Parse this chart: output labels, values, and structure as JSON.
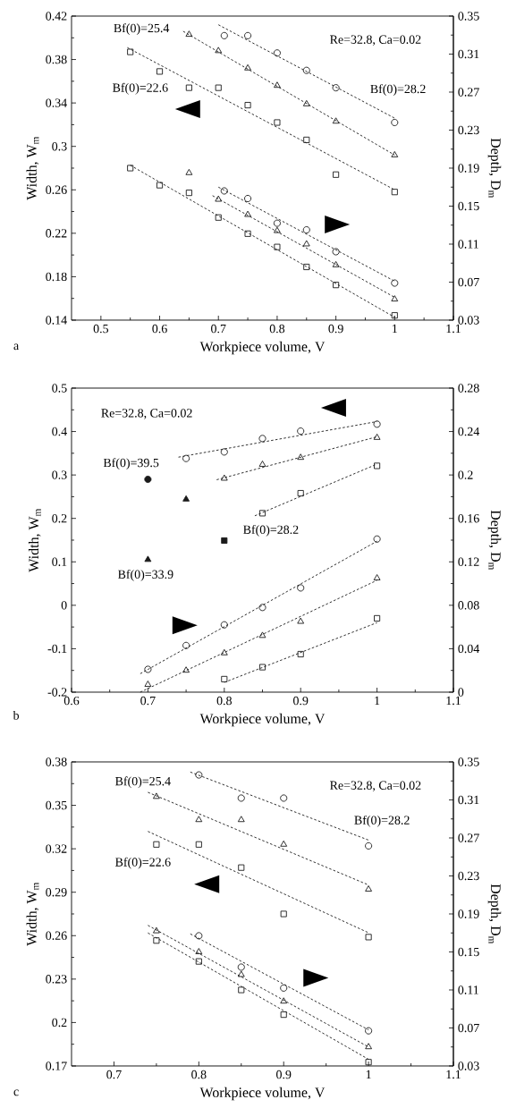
{
  "chart_data": [
    {
      "type": "scatter",
      "xlabel": "Workpiece volume, V",
      "ylabel": "Width, W$_{m}$",
      "y2label": "Depth, D$_{m}$",
      "xlim": [
        0.45,
        1.1
      ],
      "xticks": [
        0.5,
        0.6,
        0.7,
        0.8,
        0.9,
        1,
        1.1
      ],
      "ylim": [
        0.14,
        0.42
      ],
      "yticks": [
        0.14,
        0.18,
        0.22,
        0.26,
        0.3,
        0.34,
        0.38,
        0.42
      ],
      "y2lim": [
        0.03,
        0.35
      ],
      "y2ticks": [
        0.03,
        0.07,
        0.11,
        0.15,
        0.19,
        0.23,
        0.27,
        0.31,
        0.35
      ],
      "annotations": [
        "Re=32.8, Ca=0.02",
        "a",
        "Bf(0)=25.4",
        "Bf(0)=22.6",
        "Bf(0)=28.2"
      ],
      "series": [
        {
          "type": "scatter",
          "marker": "square",
          "color": "#1a1a1a",
          "x": [
            0.55,
            0.6,
            0.65,
            0.7,
            0.75,
            0.8,
            0.85,
            0.9,
            1
          ],
          "values": [
            0.387,
            0.369,
            0.354,
            0.354,
            0.338,
            0.322,
            0.306,
            0.274,
            0.258
          ]
        },
        {
          "type": "scatter",
          "marker": "triangle",
          "color": "#1a1a1a",
          "x": [
            0.65,
            0.7,
            0.75,
            0.8,
            0.85,
            0.9,
            1
          ],
          "values": [
            0.403,
            0.388,
            0.372,
            0.356,
            0.339,
            0.323,
            0.292
          ]
        },
        {
          "type": "scatter",
          "marker": "circle",
          "color": "#1a1a1a",
          "x": [
            0.71,
            0.75,
            0.8,
            0.85,
            0.9,
            1
          ],
          "values": [
            0.402,
            0.402,
            0.386,
            0.37,
            0.354,
            0.322
          ]
        },
        {
          "type": "line",
          "line_style": "dashed",
          "color": "#1a1a1a",
          "x": [
            0.545,
            1
          ],
          "values": [
            0.391,
            0.26
          ]
        },
        {
          "type": "line",
          "line_style": "dashed",
          "color": "#1a1a1a",
          "x": [
            0.64,
            1
          ],
          "values": [
            0.406,
            0.292
          ]
        },
        {
          "type": "line",
          "line_style": "dashed",
          "color": "#1a1a1a",
          "x": [
            0.7,
            1
          ],
          "values": [
            0.412,
            0.326
          ]
        },
        {
          "type": "scatter",
          "axis": "y2",
          "marker": "square",
          "color": "#1a1a1a",
          "x": [
            0.55,
            0.6,
            0.65,
            0.7,
            0.75,
            0.8,
            0.85,
            0.9,
            1
          ],
          "values": [
            0.19,
            0.172,
            0.164,
            0.138,
            0.121,
            0.107,
            0.086,
            0.067,
            0.035
          ]
        },
        {
          "type": "scatter",
          "axis": "y2",
          "marker": "triangle",
          "color": "#1a1a1a",
          "x": [
            0.65,
            0.7,
            0.75,
            0.8,
            0.85,
            0.9,
            1
          ],
          "values": [
            0.185,
            0.157,
            0.141,
            0.124,
            0.11,
            0.088,
            0.052
          ]
        },
        {
          "type": "scatter",
          "axis": "y2",
          "marker": "circle",
          "color": "#1a1a1a",
          "x": [
            0.71,
            0.75,
            0.8,
            0.85,
            0.9,
            1
          ],
          "values": [
            0.166,
            0.158,
            0.132,
            0.125,
            0.102,
            0.069
          ]
        },
        {
          "type": "line",
          "axis": "y2",
          "line_style": "dashed",
          "color": "#1a1a1a",
          "x": [
            0.55,
            1
          ],
          "values": [
            0.193,
            0.033
          ]
        },
        {
          "type": "line",
          "axis": "y2",
          "line_style": "dashed",
          "color": "#1a1a1a",
          "x": [
            0.69,
            1
          ],
          "values": [
            0.161,
            0.054
          ]
        },
        {
          "type": "line",
          "axis": "y2",
          "line_style": "dashed",
          "color": "#1a1a1a",
          "x": [
            0.7,
            1
          ],
          "values": [
            0.17,
            0.071
          ]
        }
      ]
    },
    {
      "type": "scatter",
      "xlabel": "Workpiece volume, V",
      "ylabel": "Width, W$_{m}$",
      "y2label": "Depth, D$_{m}$",
      "xlim": [
        0.6,
        1.1
      ],
      "xticks": [
        0.6,
        0.7,
        0.8,
        0.9,
        1,
        1.1
      ],
      "ylim": [
        -0.2,
        0.5
      ],
      "yticks": [
        -0.2,
        -0.1,
        0,
        0.1,
        0.2,
        0.3,
        0.4,
        0.5
      ],
      "y2lim": [
        0,
        0.28
      ],
      "y2ticks": [
        0,
        0.04,
        0.08,
        0.12,
        0.16,
        0.2,
        0.24,
        0.28
      ],
      "annotations": [
        "Re=32.8, Ca=0.02",
        "b",
        "Bf(0)=39.5",
        "Bf(0)=28.2",
        "Bf(0)=33.9"
      ],
      "series": [
        {
          "type": "scatter",
          "marker": "circle",
          "color": "#1a1a1a",
          "x": [
            0.75,
            0.8,
            0.85,
            0.9,
            1
          ],
          "values": [
            0.338,
            0.353,
            0.384,
            0.401,
            0.417
          ]
        },
        {
          "type": "scatter",
          "marker": "triangle",
          "color": "#1a1a1a",
          "x": [
            0.8,
            0.85,
            0.9,
            1
          ],
          "values": [
            0.292,
            0.324,
            0.34,
            0.386
          ]
        },
        {
          "type": "scatter",
          "marker": "square",
          "color": "#1a1a1a",
          "x": [
            0.85,
            0.9,
            1
          ],
          "values": [
            0.212,
            0.258,
            0.321
          ]
        },
        {
          "type": "line",
          "line_style": "dashed",
          "color": "#1a1a1a",
          "x": [
            0.74,
            1
          ],
          "values": [
            0.341,
            0.423
          ]
        },
        {
          "type": "line",
          "line_style": "dashed",
          "color": "#1a1a1a",
          "x": [
            0.79,
            1
          ],
          "values": [
            0.289,
            0.388
          ]
        },
        {
          "type": "line",
          "line_style": "dashed",
          "color": "#1a1a1a",
          "x": [
            0.84,
            1
          ],
          "values": [
            0.206,
            0.325
          ]
        },
        {
          "type": "scatter",
          "marker": "circle",
          "color": "#1a1a1a",
          "x": [
            0.7
          ],
          "values": [
            0.29
          ]
        },
        {
          "type": "scatter",
          "marker": "triangle",
          "color": "#1a1a1a",
          "x": [
            0.75
          ],
          "values": [
            0.244
          ]
        },
        {
          "type": "scatter",
          "marker": "square",
          "color": "#1a1a1a",
          "x": [
            0.8
          ],
          "values": [
            0.149
          ]
        },
        {
          "type": "scatter",
          "marker": "triangle",
          "color": "#1a1a1a",
          "x": [
            0.7
          ],
          "values": [
            0.105
          ]
        },
        {
          "type": "scatter",
          "axis": "y2",
          "marker": "circle",
          "color": "#1a1a1a",
          "x": [
            0.7,
            0.75,
            0.8,
            0.85,
            0.9,
            1
          ],
          "values": [
            0.021,
            0.043,
            0.062,
            0.078,
            0.096,
            0.141
          ]
        },
        {
          "type": "scatter",
          "axis": "y2",
          "marker": "triangle",
          "color": "#1a1a1a",
          "x": [
            0.7,
            0.75,
            0.8,
            0.85,
            0.9,
            1
          ],
          "values": [
            0.007,
            0.02,
            0.036,
            0.052,
            0.065,
            0.105
          ]
        },
        {
          "type": "scatter",
          "axis": "y2",
          "marker": "square",
          "color": "#1a1a1a",
          "x": [
            0.8,
            0.85,
            0.9,
            1
          ],
          "values": [
            0.012,
            0.023,
            0.035,
            0.068
          ]
        },
        {
          "type": "line",
          "axis": "y2",
          "line_style": "dashed",
          "color": "#1a1a1a",
          "x": [
            0.69,
            1
          ],
          "values": [
            0.017,
            0.139
          ]
        },
        {
          "type": "line",
          "axis": "y2",
          "line_style": "dashed",
          "color": "#1a1a1a",
          "x": [
            0.69,
            1
          ],
          "values": [
            0,
            0.103
          ]
        },
        {
          "type": "line",
          "axis": "y2",
          "line_style": "dashed",
          "color": "#1a1a1a",
          "x": [
            0.8,
            1
          ],
          "values": [
            0.009,
            0.064
          ]
        }
      ]
    },
    {
      "type": "scatter",
      "xlabel": "Workpiece volume, V",
      "ylabel": "Width, W$_{m}$",
      "y2label": "Depth, D$_{m}$",
      "xlim": [
        0.65,
        1.1
      ],
      "xticks": [
        0.7,
        0.8,
        0.9,
        1,
        1.1
      ],
      "ylim": [
        0.17,
        0.38
      ],
      "yticks": [
        0.17,
        0.2,
        0.23,
        0.26,
        0.29,
        0.32,
        0.35,
        0.38
      ],
      "y2lim": [
        0.03,
        0.35
      ],
      "y2ticks": [
        0.03,
        0.07,
        0.11,
        0.15,
        0.19,
        0.23,
        0.27,
        0.31,
        0.35
      ],
      "annotations": [
        "Re=32.8, Ca=0.02",
        "c",
        "Bf(0)=25.4",
        "Bf(0)=22.6",
        "Bf(0)=28.2"
      ],
      "series": [
        {
          "type": "scatter",
          "marker": "circle",
          "color": "#1a1a1a",
          "x": [
            0.8,
            0.85,
            0.9,
            1
          ],
          "values": [
            0.371,
            0.355,
            0.355,
            0.322
          ]
        },
        {
          "type": "scatter",
          "marker": "triangle",
          "color": "#1a1a1a",
          "x": [
            0.75,
            0.8,
            0.85,
            0.9,
            1
          ],
          "values": [
            0.356,
            0.34,
            0.34,
            0.323,
            0.292
          ]
        },
        {
          "type": "scatter",
          "marker": "square",
          "color": "#1a1a1a",
          "x": [
            0.75,
            0.8,
            0.85,
            0.9,
            1
          ],
          "values": [
            0.323,
            0.323,
            0.307,
            0.275,
            0.259
          ]
        },
        {
          "type": "line",
          "line_style": "dashed",
          "color": "#1a1a1a",
          "x": [
            0.79,
            1
          ],
          "values": [
            0.373,
            0.326
          ]
        },
        {
          "type": "line",
          "line_style": "dashed",
          "color": "#1a1a1a",
          "x": [
            0.74,
            1
          ],
          "values": [
            0.359,
            0.295
          ]
        },
        {
          "type": "line",
          "line_style": "dashed",
          "color": "#1a1a1a",
          "x": [
            0.74,
            1
          ],
          "values": [
            0.332,
            0.262
          ]
        },
        {
          "type": "scatter",
          "axis": "y2",
          "marker": "circle",
          "color": "#1a1a1a",
          "x": [
            0.8,
            0.85,
            0.9,
            1
          ],
          "values": [
            0.167,
            0.134,
            0.112,
            0.067
          ]
        },
        {
          "type": "scatter",
          "axis": "y2",
          "marker": "triangle",
          "color": "#1a1a1a",
          "x": [
            0.75,
            0.8,
            0.85,
            0.9,
            1
          ],
          "values": [
            0.172,
            0.15,
            0.126,
            0.098,
            0.05
          ]
        },
        {
          "type": "scatter",
          "axis": "y2",
          "marker": "square",
          "color": "#1a1a1a",
          "x": [
            0.75,
            0.8,
            0.85,
            0.9,
            1
          ],
          "values": [
            0.162,
            0.14,
            0.11,
            0.084,
            0.034
          ]
        },
        {
          "type": "line",
          "axis": "y2",
          "line_style": "dashed",
          "color": "#1a1a1a",
          "x": [
            0.79,
            1
          ],
          "values": [
            0.169,
            0.068
          ]
        },
        {
          "type": "line",
          "axis": "y2",
          "line_style": "dashed",
          "color": "#1a1a1a",
          "x": [
            0.74,
            1
          ],
          "values": [
            0.178,
            0.05
          ]
        },
        {
          "type": "line",
          "axis": "y2",
          "line_style": "dashed",
          "color": "#1a1a1a",
          "x": [
            0.74,
            1
          ],
          "values": [
            0.17,
            0.037
          ]
        }
      ]
    }
  ]
}
